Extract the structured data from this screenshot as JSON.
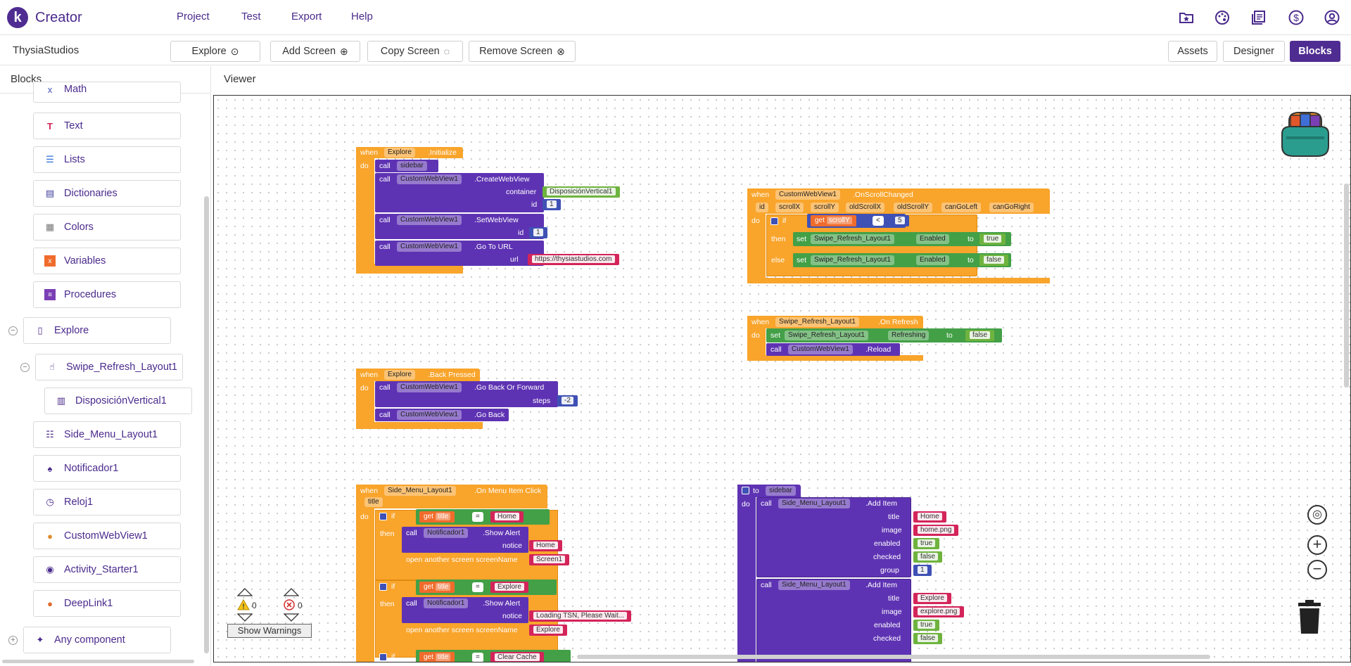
{
  "app": {
    "logo_letter": "k",
    "name": "Creator"
  },
  "menu": [
    "Project",
    "Test",
    "Export",
    "Help"
  ],
  "top_icons": [
    "gallery-icon",
    "palette-icon",
    "library-icon",
    "dollar-icon",
    "account-icon"
  ],
  "toolbar": {
    "project_name": "ThysiaStudios",
    "screen_select": "Explore",
    "add_screen": "Add Screen",
    "copy_screen": "Copy Screen",
    "remove_screen": "Remove Screen",
    "assets": "Assets",
    "designer": "Designer",
    "blocks": "Blocks"
  },
  "left_panel": {
    "title": "Blocks",
    "builtin": [
      {
        "label": "Math",
        "icon": "math-icon"
      },
      {
        "label": "Text",
        "icon": "text-icon"
      },
      {
        "label": "Lists",
        "icon": "lists-icon"
      },
      {
        "label": "Dictionaries",
        "icon": "dictionaries-icon"
      },
      {
        "label": "Colors",
        "icon": "colors-icon"
      },
      {
        "label": "Variables",
        "icon": "variables-icon"
      },
      {
        "label": "Procedures",
        "icon": "procedures-icon"
      }
    ],
    "screen": "Explore",
    "components": [
      "Swipe_Refresh_Layout1",
      "DisposiciónVertical1",
      "Side_Menu_Layout1",
      "Notificador1",
      "Reloj1",
      "CustomWebView1",
      "Activity_Starter1",
      "DeepLink1"
    ],
    "any_component": "Any component"
  },
  "viewer": {
    "title": "Viewer",
    "warnings_count": "0",
    "errors_count": "0",
    "show_warnings": "Show Warnings"
  },
  "blocks": {
    "when": "when",
    "do": "do",
    "call": "call",
    "set": "set",
    "to": "to",
    "get": "get",
    "if": "if",
    "then": "then",
    "else": "else",
    "b1": {
      "comp": "Explore",
      "event": ".Initialize",
      "proc": "sidebar",
      "wv": "CustomWebView1",
      "create": ".CreateWebView",
      "container": "container",
      "container_val": "DisposiciónVertical1",
      "id": "id",
      "id_val": "1",
      "setwv": ".SetWebView",
      "id2_val": "1",
      "goto": ".Go To URL",
      "url": "url",
      "url_val": "https://thysiastudios.com"
    },
    "b2": {
      "comp": "CustomWebView1",
      "event": ".OnScrollChanged",
      "params": [
        "id",
        "scrollX",
        "scrollY",
        "oldScrollX",
        "oldScrollY",
        "canGoLeft",
        "canGoRight"
      ],
      "get_var": "scrollY",
      "op": "<",
      "num": "5",
      "set_comp": "Swipe_Refresh_Layout1",
      "prop": "Enabled",
      "true": "true",
      "false": "false"
    },
    "b3": {
      "comp": "Swipe_Refresh_Layout1",
      "event": ".On Refresh",
      "prop": "Refreshing",
      "val": "false",
      "wv": "CustomWebView1",
      "method": ".Reload"
    },
    "b4": {
      "comp": "Explore",
      "event": ".Back Pressed",
      "wv": "CustomWebView1",
      "method1": ".Go Back Or Forward",
      "steps": "steps",
      "steps_val": "-2",
      "method2": ".Go Back"
    },
    "b5": {
      "comp": "Side_Menu_Layout1",
      "event": ".On Menu Item Click",
      "param": "title",
      "var": "title",
      "op": "=",
      "home": "Home",
      "notif": "Notificador1",
      "alert": ".Show Alert",
      "notice": "notice",
      "open": "open another screen  screenName",
      "screen1": "Screen1",
      "explore": "Explore",
      "loading": "Loading TSN, Please Wait...",
      "clear": "Clear Cache"
    },
    "b6": {
      "proc_label": "to",
      "proc": "sidebar",
      "comp": "Side_Menu_Layout1",
      "method": ".Add Item",
      "fields": [
        "title",
        "image",
        "enabled",
        "checked",
        "group"
      ],
      "item1": {
        "title": "Home",
        "image": "home.png",
        "enabled": "true",
        "checked": "false",
        "group": "1"
      },
      "item2": {
        "title": "Explore",
        "image": "explore.png",
        "enabled": "true",
        "checked": "false"
      }
    }
  }
}
